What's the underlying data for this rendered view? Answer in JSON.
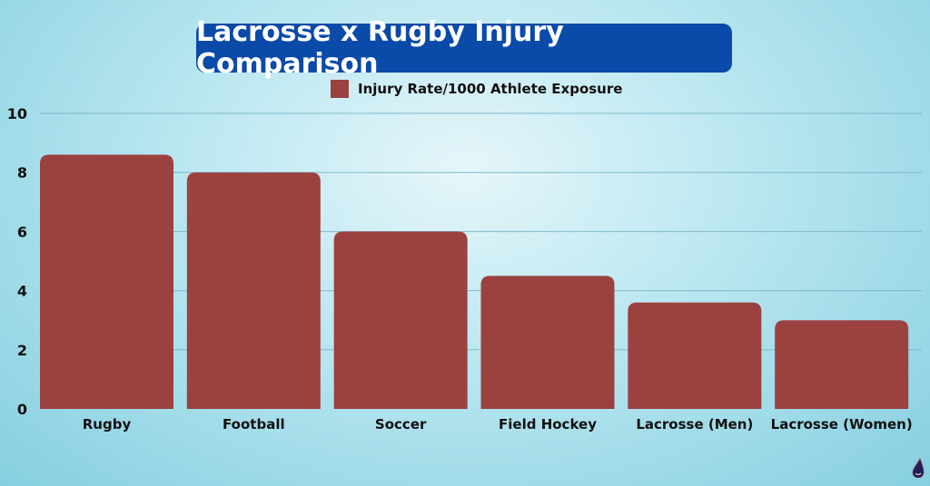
{
  "chart_data": {
    "type": "bar",
    "title": "Lacrosse x Rugby Injury Comparison",
    "categories": [
      "Rugby",
      "Football",
      "Soccer",
      "Field Hockey",
      "Lacrosse (Men)",
      "Lacrosse (Women)"
    ],
    "series": [
      {
        "name": "Injury Rate/1000 Athlete Exposure",
        "values": [
          8.6,
          8.0,
          6.0,
          4.5,
          3.6,
          3.0
        ],
        "color": "#9b4140"
      }
    ],
    "xlabel": "",
    "ylabel": "",
    "ylim": [
      0,
      10
    ],
    "yticks": [
      0,
      2,
      4,
      6,
      8,
      10
    ],
    "grid": true,
    "legend": "top-center"
  },
  "colors": {
    "title_bg": "#0a4aa8",
    "bar": "#9b4140"
  },
  "logo": {
    "icon": "water-drop-icon"
  }
}
